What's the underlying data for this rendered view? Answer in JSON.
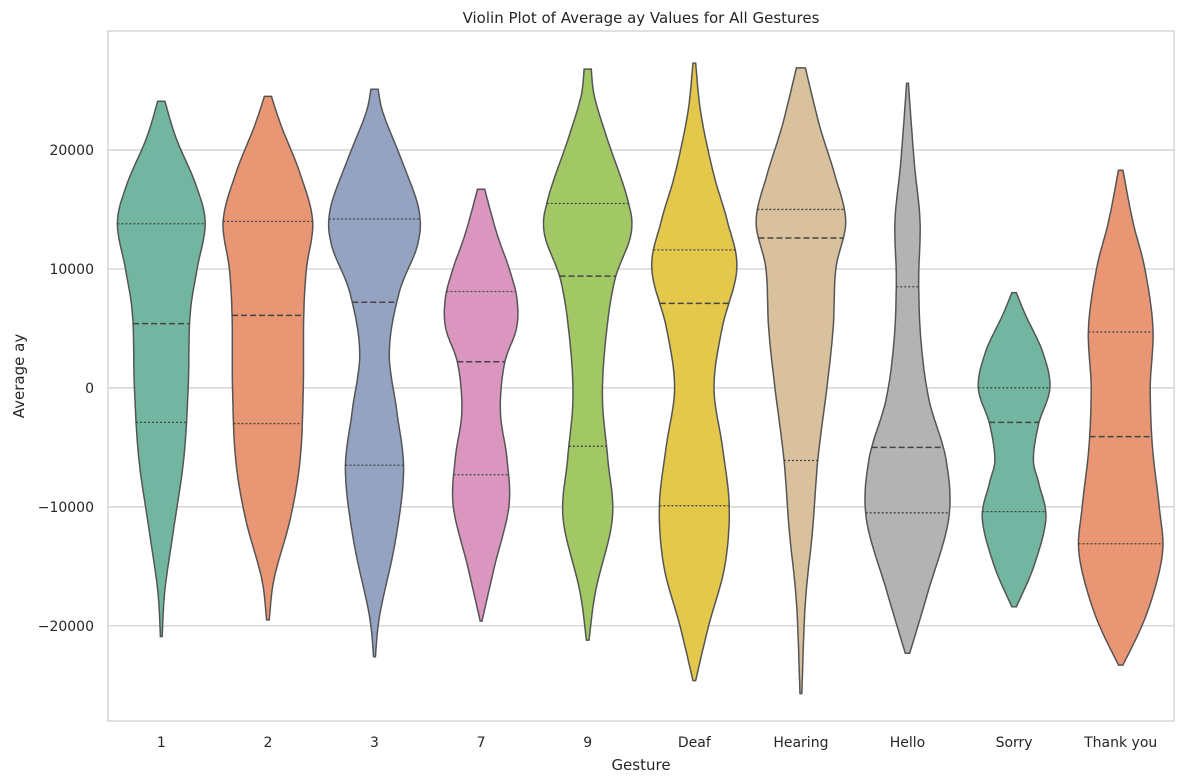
{
  "chart_data": {
    "type": "violin",
    "title": "Violin Plot of Average ay Values for All Gestures",
    "xlabel": "Gesture",
    "ylabel": "Average ay",
    "ylim": [
      -28000,
      30000
    ],
    "yticks": [
      -20000,
      -10000,
      0,
      10000,
      20000
    ],
    "ytick_labels": [
      "−20000",
      "−10000",
      "0",
      "10000",
      "20000"
    ],
    "grid": "horizontal",
    "categories": [
      "1",
      "2",
      "3",
      "7",
      "9",
      "Deaf",
      "Hearing",
      "Hello",
      "Sorry",
      "Thank you"
    ],
    "colors": [
      "#72b6a1",
      "#e99675",
      "#95a3c3",
      "#db96c0",
      "#a2c865",
      "#e3c84b",
      "#d9c19e",
      "#b3b3b3",
      "#72b6a1",
      "#e99675"
    ],
    "series": [
      {
        "category": "1",
        "min": -20900,
        "max": 24100,
        "q1": -2900,
        "median": 5400,
        "q3": 13800,
        "profile": [
          [
            -20900,
            0.02
          ],
          [
            -17000,
            0.08
          ],
          [
            -12000,
            0.27
          ],
          [
            -6000,
            0.5
          ],
          [
            0,
            0.6
          ],
          [
            6000,
            0.64
          ],
          [
            10000,
            0.8
          ],
          [
            13800,
            0.98
          ],
          [
            17000,
            0.78
          ],
          [
            21000,
            0.33
          ],
          [
            24100,
            0.08
          ]
        ]
      },
      {
        "category": "2",
        "min": -19500,
        "max": 24500,
        "q1": -3000,
        "median": 6100,
        "q3": 14000,
        "profile": [
          [
            -19500,
            0.03
          ],
          [
            -16000,
            0.14
          ],
          [
            -11000,
            0.5
          ],
          [
            -6000,
            0.72
          ],
          [
            0,
            0.79
          ],
          [
            6000,
            0.8
          ],
          [
            10000,
            0.86
          ],
          [
            14000,
            1.0
          ],
          [
            18000,
            0.72
          ],
          [
            22000,
            0.3
          ],
          [
            24500,
            0.08
          ]
        ]
      },
      {
        "category": "3",
        "min": -22600,
        "max": 25100,
        "q1": -6500,
        "median": 7200,
        "q3": 14200,
        "profile": [
          [
            -22600,
            0.02
          ],
          [
            -19000,
            0.12
          ],
          [
            -13000,
            0.46
          ],
          [
            -7000,
            0.65
          ],
          [
            -2000,
            0.5
          ],
          [
            3000,
            0.33
          ],
          [
            8000,
            0.55
          ],
          [
            12000,
            0.96
          ],
          [
            15000,
            0.99
          ],
          [
            19000,
            0.62
          ],
          [
            23000,
            0.2
          ],
          [
            25100,
            0.08
          ]
        ]
      },
      {
        "category": "7",
        "min": -19600,
        "max": 16700,
        "q1": -7300,
        "median": 2200,
        "q3": 8100,
        "profile": [
          [
            -19600,
            0.02
          ],
          [
            -15000,
            0.3
          ],
          [
            -10000,
            0.62
          ],
          [
            -6000,
            0.58
          ],
          [
            -2000,
            0.43
          ],
          [
            2000,
            0.52
          ],
          [
            5000,
            0.79
          ],
          [
            7500,
            0.8
          ],
          [
            10000,
            0.63
          ],
          [
            13000,
            0.35
          ],
          [
            16700,
            0.08
          ]
        ]
      },
      {
        "category": "9",
        "min": -21200,
        "max": 26800,
        "q1": -4900,
        "median": 9400,
        "q3": 15500,
        "profile": [
          [
            -21200,
            0.03
          ],
          [
            -17000,
            0.18
          ],
          [
            -11000,
            0.55
          ],
          [
            -6000,
            0.45
          ],
          [
            -1000,
            0.33
          ],
          [
            4000,
            0.4
          ],
          [
            9000,
            0.6
          ],
          [
            13000,
            0.97
          ],
          [
            16000,
            0.88
          ],
          [
            21000,
            0.43
          ],
          [
            24500,
            0.15
          ],
          [
            26800,
            0.08
          ]
        ]
      },
      {
        "category": "Deaf",
        "min": -24600,
        "max": 27300,
        "q1": -9900,
        "median": 7100,
        "q3": 11600,
        "profile": [
          [
            -24600,
            0.03
          ],
          [
            -20000,
            0.32
          ],
          [
            -15000,
            0.68
          ],
          [
            -10000,
            0.78
          ],
          [
            -5000,
            0.63
          ],
          [
            0,
            0.44
          ],
          [
            5000,
            0.62
          ],
          [
            10000,
            0.95
          ],
          [
            14000,
            0.74
          ],
          [
            18000,
            0.43
          ],
          [
            23000,
            0.15
          ],
          [
            27300,
            0.03
          ]
        ]
      },
      {
        "category": "Hearing",
        "min": -25700,
        "max": 26900,
        "q1": -6100,
        "median": 12600,
        "q3": 15000,
        "profile": [
          [
            -25700,
            0.02
          ],
          [
            -18000,
            0.1
          ],
          [
            -12000,
            0.26
          ],
          [
            -6000,
            0.38
          ],
          [
            0,
            0.58
          ],
          [
            5000,
            0.72
          ],
          [
            10000,
            0.78
          ],
          [
            14000,
            1.0
          ],
          [
            18000,
            0.75
          ],
          [
            22000,
            0.42
          ],
          [
            26900,
            0.1
          ]
        ]
      },
      {
        "category": "Hello",
        "min": -22300,
        "max": 25600,
        "q1": -10500,
        "median": -5000,
        "q3": 8500,
        "profile": [
          [
            -22300,
            0.05
          ],
          [
            -17000,
            0.47
          ],
          [
            -11000,
            0.92
          ],
          [
            -6000,
            0.86
          ],
          [
            -1000,
            0.48
          ],
          [
            4000,
            0.3
          ],
          [
            9000,
            0.25
          ],
          [
            14000,
            0.28
          ],
          [
            19000,
            0.15
          ],
          [
            25600,
            0.02
          ]
        ]
      },
      {
        "category": "Sorry",
        "min": -18400,
        "max": 8000,
        "q1": -10400,
        "median": -2900,
        "q3": 0,
        "profile": [
          [
            -18400,
            0.05
          ],
          [
            -15000,
            0.44
          ],
          [
            -11000,
            0.71
          ],
          [
            -8000,
            0.55
          ],
          [
            -6000,
            0.43
          ],
          [
            -3000,
            0.55
          ],
          [
            0,
            0.8
          ],
          [
            3000,
            0.64
          ],
          [
            6000,
            0.27
          ],
          [
            8000,
            0.05
          ]
        ]
      },
      {
        "category": "Thank you",
        "min": -23300,
        "max": 18300,
        "q1": -13100,
        "median": -4100,
        "q3": 4700,
        "profile": [
          [
            -23300,
            0.05
          ],
          [
            -19000,
            0.58
          ],
          [
            -14000,
            0.93
          ],
          [
            -10000,
            0.86
          ],
          [
            -5000,
            0.71
          ],
          [
            0,
            0.66
          ],
          [
            5000,
            0.72
          ],
          [
            10000,
            0.54
          ],
          [
            14000,
            0.27
          ],
          [
            18300,
            0.05
          ]
        ]
      }
    ]
  }
}
